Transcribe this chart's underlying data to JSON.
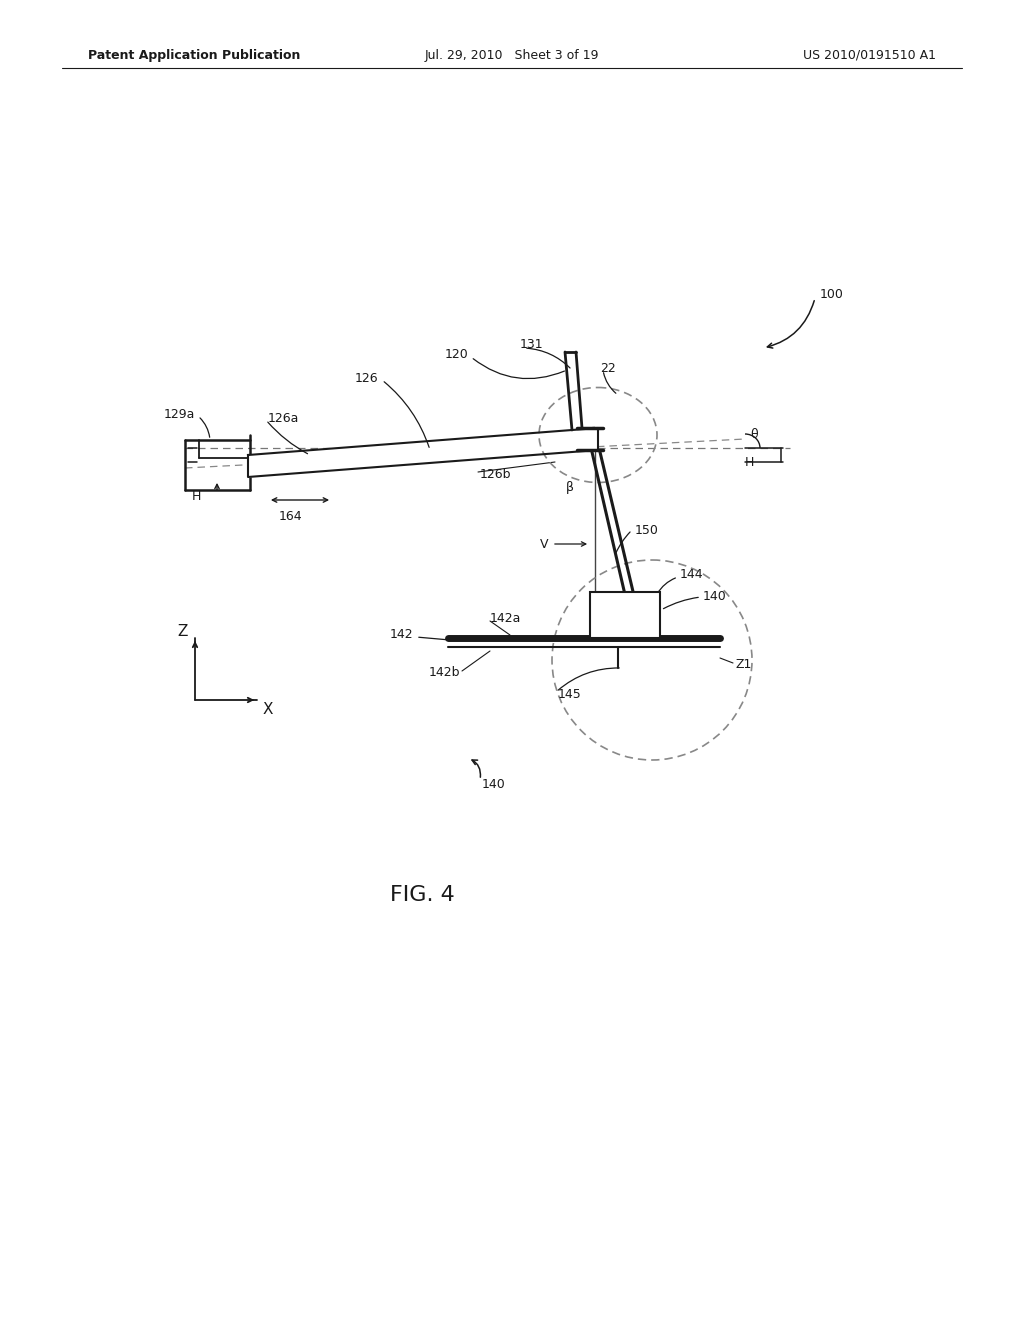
{
  "bg_color": "#ffffff",
  "header_left": "Patent Application Publication",
  "header_center": "Jul. 29, 2010   Sheet 3 of 19",
  "header_right": "US 2010/0191510 A1",
  "fig_caption": "FIG. 4"
}
